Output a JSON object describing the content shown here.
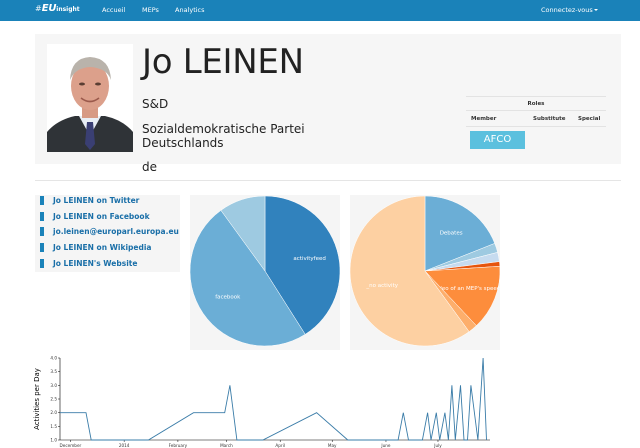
{
  "navbar": {
    "brand_hash": "#",
    "brand_eu": "EU",
    "brand_insight": "insight",
    "links": [
      "Accueil",
      "MEPs",
      "Analytics"
    ],
    "connect": "Connectez-vous"
  },
  "profile": {
    "name": "Jo LEINEN",
    "group": "S&D",
    "party": "Sozialdemokratische Partei Deutschlands",
    "country": "de"
  },
  "roles": {
    "title": "Roles",
    "headers": [
      "Member",
      "Substitute",
      "Special"
    ],
    "member": "AFCO"
  },
  "links": [
    "Jo LEINEN on Twitter",
    "Jo LEINEN on Facebook",
    "jo.leinen@europarl.europa.eu",
    "Jo LEINEN on Wikipedia",
    "Jo LEINEN's Website"
  ],
  "colors": {
    "navbar": "#1a82b9",
    "badge": "#5bc0de"
  },
  "chart_data": [
    {
      "type": "pie",
      "labels": [
        "activityfeed",
        "facebook",
        ""
      ],
      "values": [
        41,
        49,
        10
      ],
      "colors": [
        "#3182bd",
        "#6baed6",
        "#9ecae1"
      ]
    },
    {
      "type": "pie",
      "labels": [
        "Debates",
        "",
        "",
        "",
        "Video of an MEP's speech",
        "",
        "_no activity"
      ],
      "values": [
        19,
        2,
        2,
        1,
        14,
        2,
        60
      ],
      "colors": [
        "#6baed6",
        "#9ecae1",
        "#c6dbef",
        "#e6550d",
        "#fd8d3c",
        "#fdae6b",
        "#fdd0a2"
      ]
    },
    {
      "type": "line",
      "ylabel": "Activities per Day",
      "x_ticks": [
        "December",
        "2014",
        "February",
        "March",
        "April",
        "May",
        "June",
        "July"
      ],
      "y_ticks": [
        "1.0",
        "1.5",
        "2.0",
        "2.5",
        "3.0",
        "3.5",
        "4.0"
      ],
      "ylim": [
        1,
        4
      ],
      "x_domain": [
        "2013-11-25",
        "2014-07-31"
      ],
      "dates": [
        "2013-11-25",
        "2013-12-10",
        "2013-12-13",
        "2014-01-15",
        "2014-02-10",
        "2014-02-28",
        "2014-03-03",
        "2014-03-07",
        "2014-03-12",
        "2014-03-22",
        "2014-04-22",
        "2014-05-10",
        "2014-06-01",
        "2014-06-08",
        "2014-06-11",
        "2014-06-14",
        "2014-06-22",
        "2014-06-25",
        "2014-06-27",
        "2014-06-30",
        "2014-07-02",
        "2014-07-05",
        "2014-07-07",
        "2014-07-09",
        "2014-07-11",
        "2014-07-14",
        "2014-07-16",
        "2014-07-18",
        "2014-07-20",
        "2014-07-22",
        "2014-07-24",
        "2014-07-27",
        "2014-07-29"
      ],
      "values": [
        2,
        2,
        1,
        1,
        2,
        2,
        3,
        1,
        1,
        1,
        2,
        1,
        1,
        1,
        2,
        1,
        1,
        2,
        1,
        2,
        1,
        2,
        1,
        3,
        1,
        3,
        1,
        1,
        3,
        2,
        1,
        4,
        1
      ]
    }
  ]
}
